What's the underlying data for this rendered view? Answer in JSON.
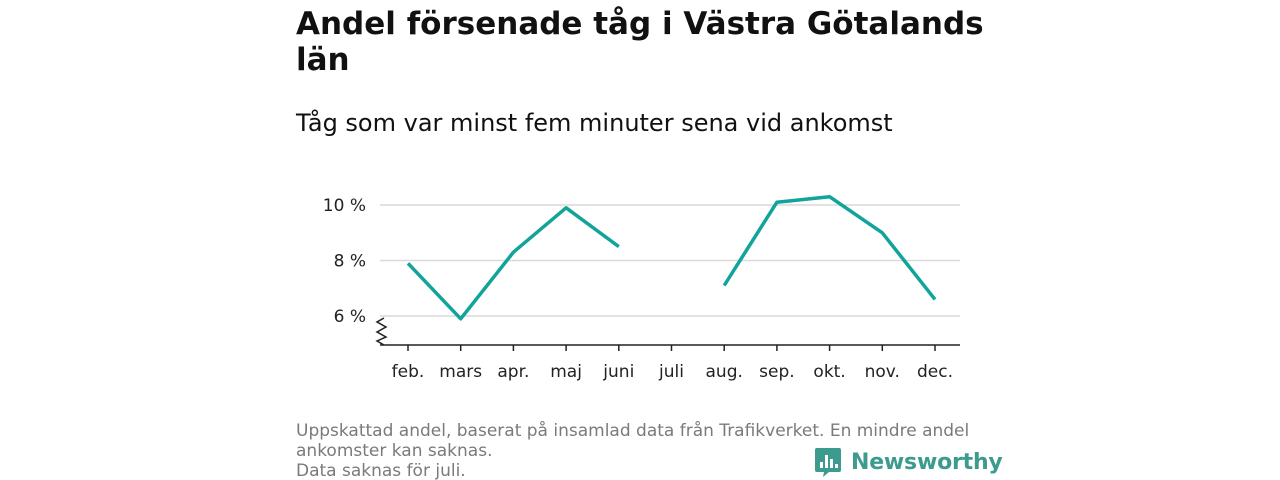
{
  "title": "Andel försenade tåg i Västra Götalands län",
  "subtitle": "Tåg som var minst fem minuter sena vid ankomst",
  "footer": {
    "line1": "Uppskattad andel, baserat på insamlad data från Trafikverket. En mindre andel ankomster kan saknas.",
    "line2": "Data saknas för juli."
  },
  "brand": {
    "name": "Newsworthy",
    "color": "#3d9a8f"
  },
  "chart_data": {
    "type": "line",
    "categories": [
      "feb.",
      "mars",
      "apr.",
      "maj",
      "juni",
      "juli",
      "aug.",
      "sep.",
      "okt.",
      "nov.",
      "dec."
    ],
    "series": [
      {
        "values": [
          7.9,
          5.9,
          8.3,
          9.9,
          8.5,
          null,
          7.1,
          10.1,
          10.3,
          9.0,
          6.6
        ],
        "color": "#12a39a"
      }
    ],
    "yticks": [
      6,
      8,
      10
    ],
    "ytick_labels": [
      "6 %",
      "8 %",
      "10 %"
    ],
    "ylim": [
      5.0,
      11.0
    ],
    "y_axis_break": true,
    "grid": true,
    "xlabel": "",
    "ylabel": ""
  }
}
